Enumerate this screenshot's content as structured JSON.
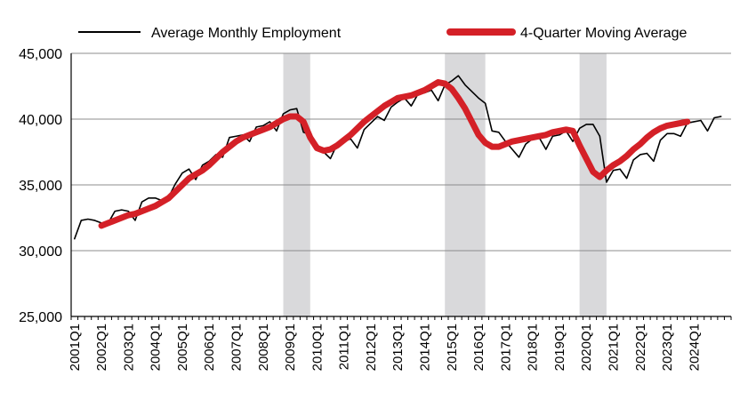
{
  "chart_data": {
    "type": "line",
    "title": "",
    "xlabel": "",
    "ylabel": "",
    "ylim": [
      25000,
      45000
    ],
    "yticks": [
      25000,
      30000,
      35000,
      40000,
      45000
    ],
    "ytick_labels": [
      "25,000",
      "30,000",
      "35,000",
      "40,000",
      "45,000"
    ],
    "grid": true,
    "legend_position": "top",
    "x_start": "2001Q1",
    "x_tick_labels": [
      "2001Q1",
      "2002Q1",
      "2003Q1",
      "2004Q1",
      "2005Q1",
      "2006Q1",
      "2007Q1",
      "2008Q1",
      "2009Q1",
      "2010Q1",
      "2011Q1",
      "2012Q1",
      "2013Q1",
      "2014Q1",
      "2015Q1",
      "2016Q1",
      "2017Q1",
      "2018Q1",
      "2019Q1",
      "2020Q1",
      "2021Q1",
      "2022Q1",
      "2023Q1",
      "2024Q1"
    ],
    "recessions": [
      {
        "start": "2008Q4",
        "end": "2009Q4"
      },
      {
        "start": "2014Q4",
        "end": "2016Q2"
      },
      {
        "start": "2019Q4",
        "end": "2020Q4"
      }
    ],
    "series": [
      {
        "name": "Average Monthly Employment",
        "color": "#000000",
        "start": "2001Q1",
        "values": [
          30900,
          32300,
          32400,
          32300,
          32100,
          32100,
          33000,
          33100,
          33000,
          32300,
          33700,
          34000,
          34000,
          33800,
          34100,
          35100,
          35900,
          36200,
          35400,
          36500,
          36800,
          37300,
          37100,
          38600,
          38700,
          38800,
          38300,
          39400,
          39500,
          39800,
          39100,
          40400,
          40700,
          40800,
          39000,
          38800,
          38100,
          37500,
          37000,
          38100,
          38300,
          38500,
          37800,
          39200,
          39700,
          40200,
          39900,
          40900,
          41300,
          41600,
          41000,
          41900,
          42000,
          42200,
          41400,
          42600,
          42900,
          43300,
          42600,
          42100,
          41600,
          41200,
          39100,
          39000,
          38300,
          37700,
          37100,
          38100,
          38500,
          38600,
          37700,
          38700,
          38800,
          39100,
          38300,
          39300,
          39600,
          39600,
          38700,
          35200,
          36100,
          36200,
          35500,
          36900,
          37300,
          37400,
          36800,
          38400,
          38900,
          38900,
          38700,
          39700,
          39800,
          39900,
          39100,
          40100,
          40200
        ]
      },
      {
        "name": "4-Quarter Moving Average",
        "color": "#d42027",
        "start": "2002Q1",
        "values": [
          31900,
          32100,
          32300,
          32500,
          32700,
          32800,
          33000,
          33200,
          33400,
          33700,
          34000,
          34500,
          35000,
          35500,
          35800,
          36100,
          36500,
          37000,
          37500,
          37900,
          38300,
          38600,
          38800,
          39000,
          39200,
          39400,
          39700,
          40000,
          40200,
          40200,
          39800,
          38600,
          37800,
          37600,
          37700,
          38000,
          38400,
          38800,
          39300,
          39800,
          40200,
          40600,
          41000,
          41300,
          41600,
          41700,
          41800,
          42000,
          42200,
          42500,
          42800,
          42700,
          42300,
          41600,
          40800,
          39800,
          38800,
          38200,
          37900,
          37900,
          38100,
          38300,
          38400,
          38500,
          38600,
          38700,
          38800,
          39000,
          39100,
          39200,
          39100,
          38000,
          37000,
          36000,
          35600,
          36100,
          36500,
          36800,
          37200,
          37700,
          38100,
          38600,
          39000,
          39300,
          39500,
          39600,
          39700,
          39800
        ]
      }
    ]
  }
}
